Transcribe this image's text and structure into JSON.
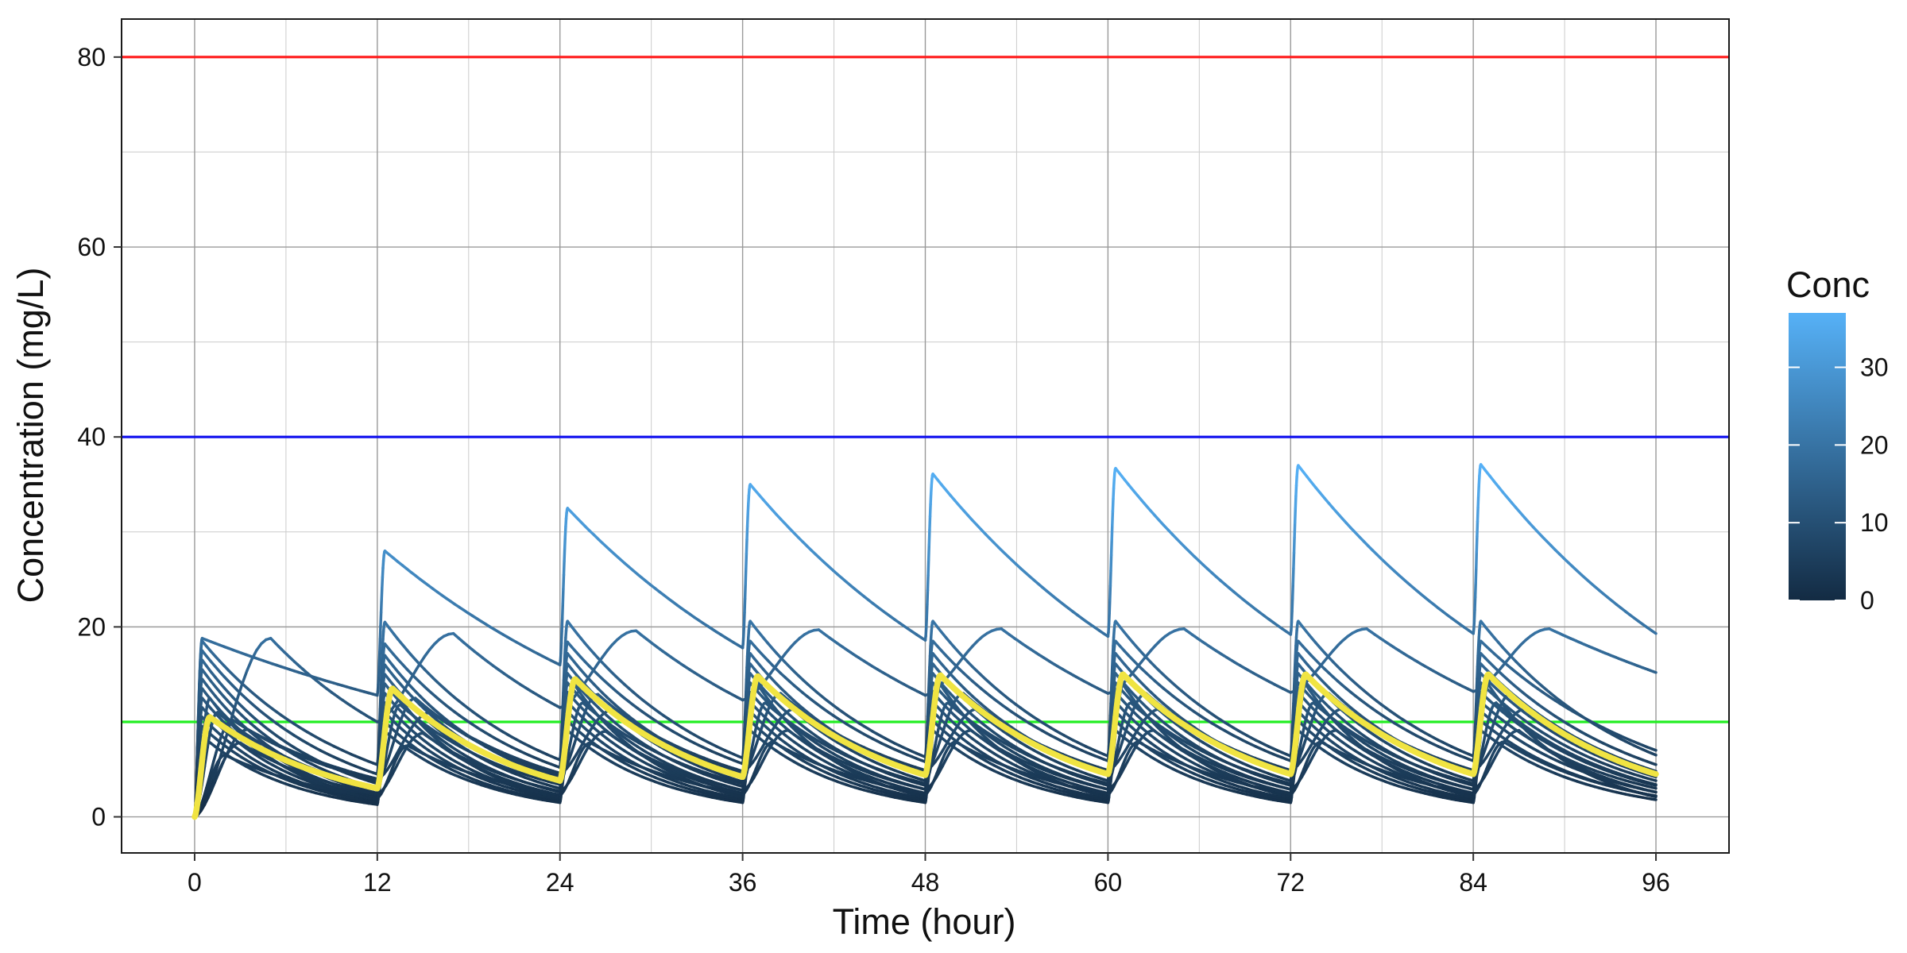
{
  "chart_data": {
    "type": "line",
    "title": "",
    "xlabel": "Time (hour)",
    "ylabel": "Concentration (mg/L)",
    "xlim": [
      -4.8,
      100.8
    ],
    "ylim": [
      -3.8,
      84.0
    ],
    "xticks": [
      0,
      12,
      24,
      36,
      48,
      60,
      72,
      84,
      96
    ],
    "yticks": [
      0,
      20,
      40,
      60,
      80
    ],
    "grid": true,
    "dosing_interval_h": 12,
    "reference_lines": [
      {
        "y": 80,
        "color": "#ff1a1a"
      },
      {
        "y": 40,
        "color": "#1111ee"
      },
      {
        "y": 10,
        "color": "#22ee22"
      }
    ],
    "legend": {
      "title": "Conc",
      "type": "colorbar",
      "position": "right",
      "ticks": [
        0,
        10,
        20,
        30
      ],
      "range": [
        0,
        37
      ],
      "color_low": "#132b43",
      "color_high": "#56b1f7"
    },
    "highlight_color": "#f0e442",
    "series": [
      {
        "peaks": [
          18.8,
          28.0,
          32.5,
          35.0,
          36.1,
          36.7,
          37.0,
          37.1
        ],
        "troughs": [
          0.0,
          12.8,
          16.0,
          17.8,
          18.6,
          19.0,
          19.2,
          19.3,
          19.3
        ]
      },
      {
        "peaks": [
          18.8,
          19.3,
          19.6,
          19.7,
          19.8,
          19.8,
          19.8,
          19.8
        ],
        "troughs": [
          0.0,
          10.0,
          11.5,
          12.3,
          12.8,
          13.0,
          13.1,
          13.2,
          15.2
        ],
        "tmax_h": 5.0
      },
      {
        "peaks": [
          18.5,
          20.5,
          20.6,
          20.6,
          20.6,
          20.6,
          20.6,
          20.6
        ],
        "troughs": [
          0.0,
          5.5,
          6.0,
          6.2,
          6.3,
          6.4,
          6.4,
          6.4,
          6.5
        ]
      },
      {
        "peaks": [
          17.5,
          18.2,
          18.4,
          18.5,
          18.5,
          18.5,
          18.5,
          18.5
        ],
        "troughs": [
          0.0,
          4.5,
          5.2,
          5.6,
          5.8,
          5.9,
          5.9,
          5.9,
          7.0
        ]
      },
      {
        "peaks": [
          16.5,
          17.0,
          17.2,
          17.2,
          17.2,
          17.2,
          17.2,
          17.2
        ],
        "troughs": [
          0.0,
          3.5,
          4.0,
          4.3,
          4.4,
          4.5,
          4.5,
          4.5,
          5.5
        ]
      },
      {
        "peaks": [
          15.5,
          16.0,
          16.1,
          16.1,
          16.1,
          16.1,
          16.1,
          16.1
        ],
        "troughs": [
          0.0,
          3.0,
          3.5,
          3.7,
          3.8,
          3.8,
          3.8,
          3.8,
          4.8
        ]
      },
      {
        "peaks": [
          14.5,
          15.0,
          15.1,
          15.1,
          15.1,
          15.1,
          15.1,
          15.1
        ],
        "troughs": [
          0.0,
          2.5,
          3.0,
          3.2,
          3.3,
          3.3,
          3.3,
          3.3,
          4.2
        ]
      },
      {
        "peaks": [
          13.5,
          14.0,
          14.1,
          14.1,
          14.1,
          14.1,
          14.1,
          14.1
        ],
        "troughs": [
          0.0,
          2.2,
          2.6,
          2.8,
          2.9,
          2.9,
          2.9,
          2.9,
          3.8
        ]
      },
      {
        "peaks": [
          12.5,
          13.0,
          13.1,
          13.1,
          13.1,
          13.1,
          13.1,
          13.1
        ],
        "troughs": [
          0.0,
          2.0,
          2.3,
          2.5,
          2.5,
          2.5,
          2.5,
          2.5,
          3.3
        ]
      },
      {
        "peaks": [
          11.5,
          12.0,
          12.1,
          12.1,
          12.1,
          12.1,
          12.1,
          12.1
        ],
        "troughs": [
          0.0,
          1.8,
          2.0,
          2.2,
          2.2,
          2.2,
          2.2,
          2.2,
          3.0
        ]
      },
      {
        "peaks": [
          10.5,
          11.0,
          11.1,
          11.1,
          11.1,
          11.1,
          11.1,
          11.1
        ],
        "troughs": [
          0.0,
          1.6,
          1.8,
          1.9,
          1.9,
          1.9,
          1.9,
          1.9,
          2.6
        ]
      },
      {
        "peaks": [
          9.5,
          10.0,
          10.1,
          10.1,
          10.1,
          10.1,
          10.1,
          10.1
        ],
        "troughs": [
          0.0,
          1.5,
          1.6,
          1.7,
          1.7,
          1.7,
          1.7,
          1.7,
          2.2
        ]
      },
      {
        "peaks": [
          8.5,
          9.0,
          9.1,
          9.1,
          9.1,
          9.1,
          9.1,
          9.1
        ],
        "troughs": [
          0.0,
          1.3,
          1.5,
          1.5,
          1.5,
          1.5,
          1.5,
          1.5,
          1.8
        ]
      },
      {
        "peaks": [
          9.2,
          11.0,
          11.3,
          11.4,
          11.4,
          11.4,
          11.4,
          11.4
        ],
        "troughs": [
          0.0,
          4.0,
          4.6,
          4.8,
          4.9,
          4.9,
          4.9,
          4.9,
          4.6
        ],
        "tmax_h": 3.5
      },
      {
        "peaks": [
          7.8,
          8.8,
          9.0,
          9.1,
          9.1,
          9.1,
          9.1,
          9.1
        ],
        "troughs": [
          0.0,
          2.4,
          2.7,
          2.8,
          2.9,
          2.9,
          2.9,
          2.9,
          2.6
        ],
        "tmax_h": 3.0
      },
      {
        "peaks": [
          10.2,
          12.5,
          12.9,
          13.0,
          13.0,
          13.0,
          13.0,
          13.0
        ],
        "troughs": [
          0.0,
          3.8,
          4.3,
          4.5,
          4.6,
          4.6,
          4.6,
          4.6,
          4.3
        ],
        "tmax_h": 2.5
      },
      {
        "peaks": [
          6.5,
          7.5,
          7.8,
          7.9,
          7.9,
          7.9,
          7.9,
          7.9
        ],
        "troughs": [
          0.0,
          2.0,
          2.3,
          2.4,
          2.4,
          2.4,
          2.4,
          2.4,
          2.2
        ],
        "tmax_h": 2.0
      },
      {
        "peaks": [
          11.0,
          11.8,
          12.0,
          12.0,
          12.0,
          12.0,
          12.0,
          12.0
        ],
        "troughs": [
          0.0,
          3.0,
          3.4,
          3.5,
          3.5,
          3.5,
          3.5,
          3.5,
          3.4
        ],
        "tmax_h": 1.5
      },
      {
        "peaks": [
          12.5,
          13.5,
          13.8,
          13.9,
          13.9,
          13.9,
          13.9,
          13.9
        ],
        "troughs": [
          0.0,
          1.8,
          2.0,
          2.1,
          2.1,
          2.1,
          2.1,
          2.1,
          2.1
        ],
        "tmax_h": 1.0
      },
      {
        "peaks": [
          10.5,
          13.5,
          14.5,
          14.8,
          14.9,
          15.0,
          15.0,
          15.0
        ],
        "troughs": [
          0.0,
          3.0,
          3.8,
          4.2,
          4.4,
          4.5,
          4.5,
          4.5,
          4.5
        ],
        "tmax_h": 1.0,
        "highlight": true
      }
    ]
  }
}
